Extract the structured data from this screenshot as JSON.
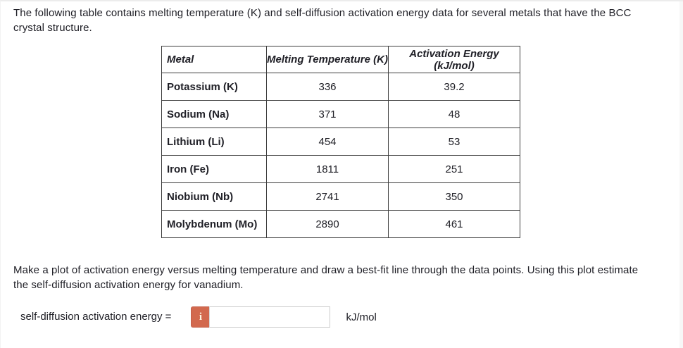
{
  "intro": {
    "line1": "The following table contains melting temperature (K) and self-diffusion activation energy data for several metals that have the BCC",
    "line2": "crystal structure."
  },
  "table": {
    "headers": {
      "metal": "Metal",
      "melting_temperature": "Melting Temperature (K)",
      "activation_energy": "Activation Energy (kJ/mol)"
    },
    "rows": [
      {
        "metal": "Potassium (K)",
        "melting_temperature": "336",
        "activation_energy": "39.2"
      },
      {
        "metal": "Sodium (Na)",
        "melting_temperature": "371",
        "activation_energy": "48"
      },
      {
        "metal": "Lithium (Li)",
        "melting_temperature": "454",
        "activation_energy": "53"
      },
      {
        "metal": "Iron (Fe)",
        "melting_temperature": "1811",
        "activation_energy": "251"
      },
      {
        "metal": "Niobium (Nb)",
        "melting_temperature": "2741",
        "activation_energy": "350"
      },
      {
        "metal": "Molybdenum (Mo)",
        "melting_temperature": "2890",
        "activation_energy": "461"
      }
    ]
  },
  "instruction": {
    "line1": "Make a plot of activation energy versus melting temperature and draw a best-fit line through the data points. Using this plot estimate",
    "line2": "the self-diffusion activation energy for vanadium."
  },
  "answer": {
    "label": "self-diffusion activation energy =",
    "info_button_glyph": "i",
    "input_value": "",
    "unit": "kJ/mol"
  },
  "colors": {
    "info_button_bg": "#d2694e",
    "table_border": "#3d3d3d",
    "input_border": "#cbcbcb",
    "text": "#202027"
  }
}
